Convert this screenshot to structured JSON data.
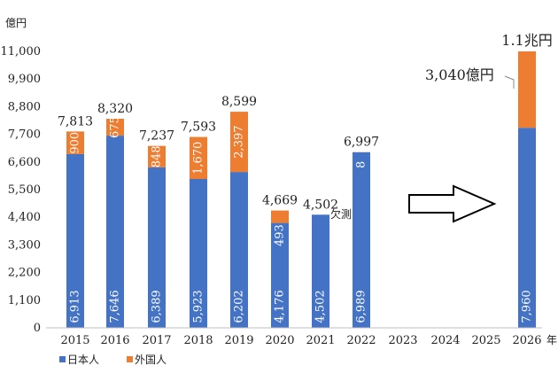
{
  "chart_data": {
    "type": "bar",
    "stacked": true,
    "ylabel": "億円",
    "xlabel": "年",
    "ylim": [
      0,
      11000
    ],
    "y_ticks": [
      "0",
      "1,100",
      "2,200",
      "3,300",
      "4,400",
      "5,500",
      "6,600",
      "7,700",
      "8,800",
      "9,900",
      "11,000"
    ],
    "y_tick_values": [
      0,
      1100,
      2200,
      3300,
      4400,
      5500,
      6600,
      7700,
      8800,
      9900,
      11000
    ],
    "categories": [
      "2015",
      "2016",
      "2017",
      "2018",
      "2019",
      "2020",
      "2021",
      "2022",
      "2023",
      "2024",
      "2025",
      "2026"
    ],
    "series": [
      {
        "name": "日本人",
        "color": "#4472c4",
        "values": [
          6913,
          7646,
          6389,
          5923,
          6202,
          4176,
          4502,
          6989,
          null,
          null,
          null,
          7960
        ],
        "labels": [
          "6,913",
          "7,646",
          "6,389",
          "5,923",
          "6,202",
          "4,176",
          "4,502",
          "6,989",
          "",
          "",
          "",
          "7,960"
        ]
      },
      {
        "name": "外国人",
        "color": "#ed7d31",
        "values": [
          900,
          675,
          848,
          1670,
          2397,
          493,
          0,
          8,
          null,
          null,
          null,
          3040
        ],
        "labels": [
          "900",
          "675",
          "848",
          "1,670",
          "2,397",
          "493",
          "",
          "8",
          "",
          "",
          "",
          ""
        ]
      }
    ],
    "totals": [
      "7,813",
      "8,320",
      "7,237",
      "7,593",
      "8,599",
      "4,669",
      "4,502",
      "6,997",
      "",
      "",
      "",
      "1.1兆円"
    ],
    "annotations": {
      "estimate_2021": "欠測",
      "foreign_2026": "3,040億円"
    },
    "grid": false,
    "legend_position": "bottom-left"
  }
}
